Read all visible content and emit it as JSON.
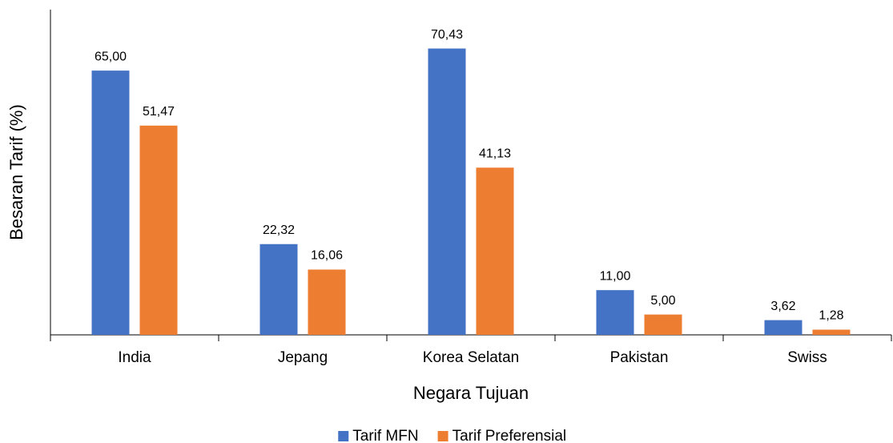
{
  "chart_data": {
    "type": "bar",
    "x_label": "Negara Tujuan",
    "y_label": "Besaran Tarif (%)",
    "categories": [
      "India",
      "Jepang",
      "Korea Selatan",
      "Pakistan",
      "Swiss"
    ],
    "series": [
      {
        "name": "Tarif MFN",
        "color": "#4472c4",
        "values": [
          65.0,
          22.32,
          70.43,
          11.0,
          3.62
        ],
        "value_labels": [
          "65,00",
          "22,32",
          "70,43",
          "11,00",
          "3,62"
        ]
      },
      {
        "name": "Tarif Preferensial",
        "color": "#ed7d31",
        "values": [
          51.47,
          16.06,
          41.13,
          5.0,
          1.28
        ],
        "value_labels": [
          "51,47",
          "16,06",
          "41,13",
          "5,00",
          "1,28"
        ]
      }
    ],
    "ylim": [
      0,
      80
    ],
    "legend": "bottom"
  }
}
